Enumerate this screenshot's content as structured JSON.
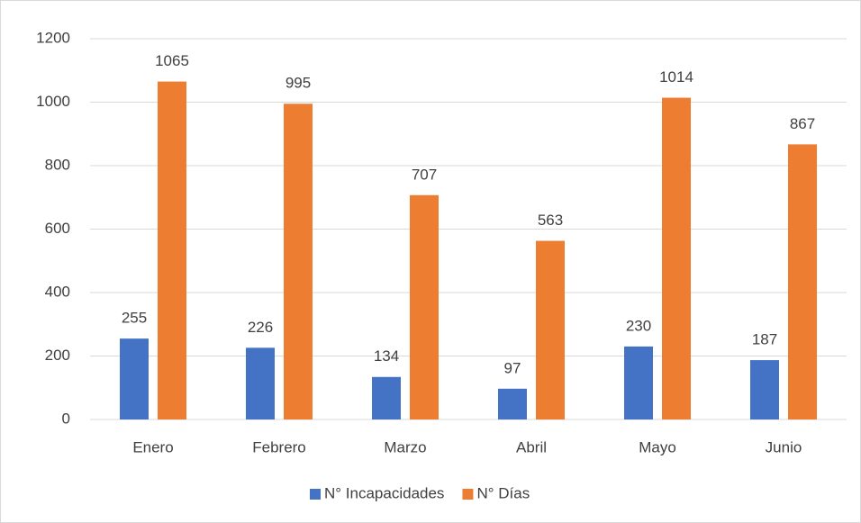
{
  "chart_data": {
    "type": "bar",
    "categories": [
      "Enero",
      "Febrero",
      "Marzo",
      "Abril",
      "Mayo",
      "Junio"
    ],
    "series": [
      {
        "name": "N° Incapacidades",
        "color": "#4472c4",
        "values": [
          255,
          226,
          134,
          97,
          230,
          187
        ]
      },
      {
        "name": "N° Días",
        "color": "#ed7d31",
        "values": [
          1065,
          995,
          707,
          563,
          1014,
          867
        ]
      }
    ],
    "ylim": [
      0,
      1200
    ],
    "yticks": [
      0,
      200,
      400,
      600,
      800,
      1000,
      1200
    ],
    "grid": true,
    "legend": "bottom"
  }
}
